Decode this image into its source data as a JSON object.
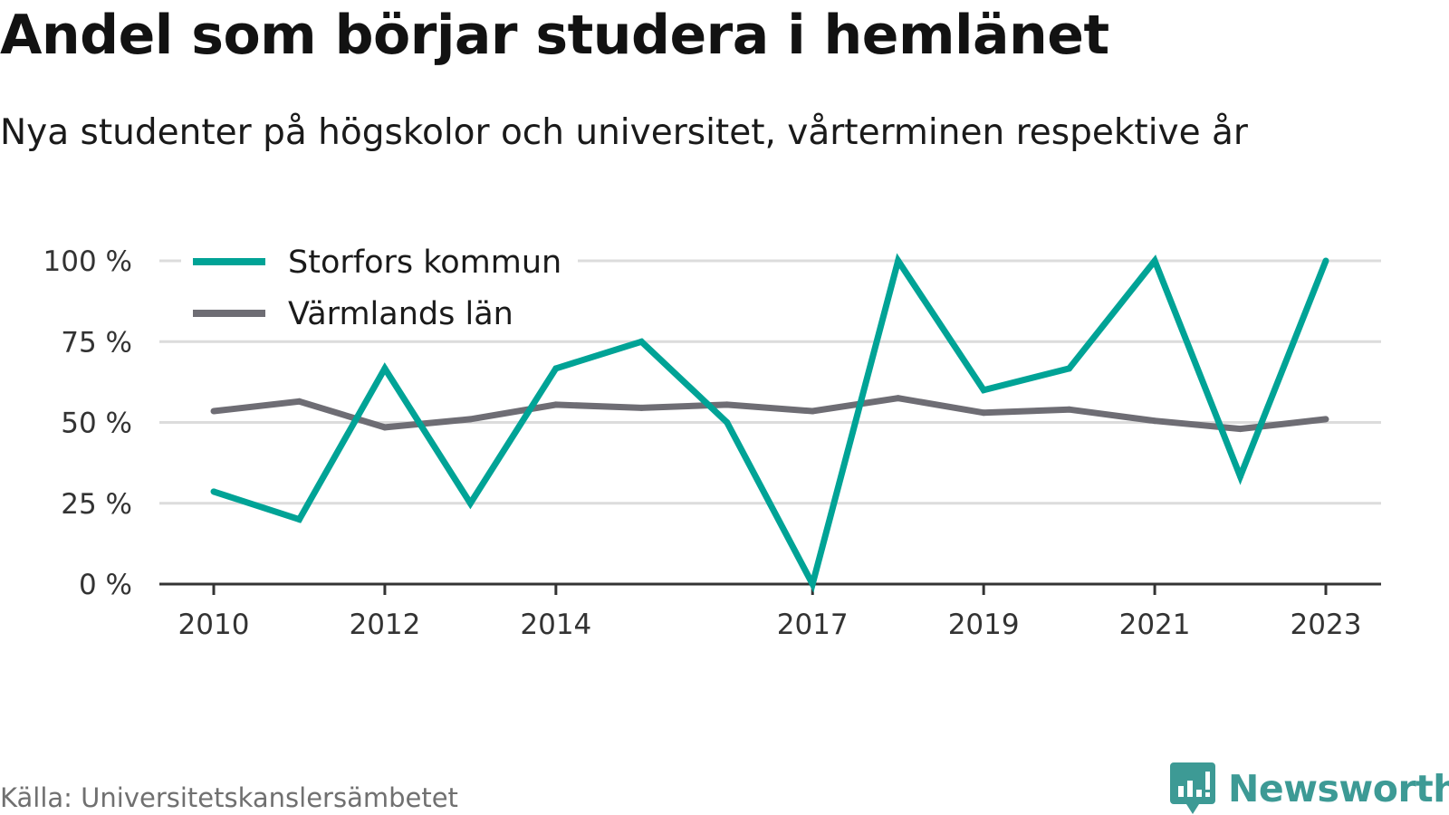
{
  "header": {
    "title": "Andel som börjar studera i hemlänet",
    "subtitle": "Nya studenter på högskolor och universitet, vårterminen respektive år"
  },
  "footer": {
    "source": "Källa: Universitetskanslersämbetet",
    "brand": "Newsworthy",
    "brand_color": "#3d9a95",
    "brand_icon": "bar-chart-speech-bubble-icon"
  },
  "chart_data": {
    "type": "line",
    "title": "Andel som börjar studera i hemlänet",
    "subtitle": "Nya studenter på högskolor och universitet, vårterminen respektive år",
    "xlabel": "",
    "ylabel": "",
    "x": [
      2010,
      2011,
      2012,
      2013,
      2014,
      2015,
      2016,
      2017,
      2018,
      2019,
      2020,
      2021,
      2022,
      2023
    ],
    "x_tick_labels": [
      "2010",
      "2012",
      "2014",
      "2017",
      "2019",
      "2021",
      "2023"
    ],
    "y_ticks": [
      0,
      25,
      50,
      75,
      100
    ],
    "y_tick_labels": [
      "0 %",
      "25 %",
      "50 %",
      "75 %",
      "100 %"
    ],
    "ylim": [
      0,
      100
    ],
    "grid": true,
    "legend_position": "top-left",
    "series": [
      {
        "name": "Storfors kommun",
        "color": "#00a396",
        "values": [
          28.6,
          20,
          66.7,
          25,
          66.7,
          75,
          50,
          0,
          100,
          60,
          66.7,
          100,
          33.3,
          100
        ]
      },
      {
        "name": "Värmlands län",
        "color": "#6e6d74",
        "values": [
          53.5,
          56.5,
          48.5,
          51,
          55.5,
          54.5,
          55.5,
          53.5,
          57.5,
          53,
          54,
          50.5,
          48,
          51
        ]
      }
    ]
  }
}
